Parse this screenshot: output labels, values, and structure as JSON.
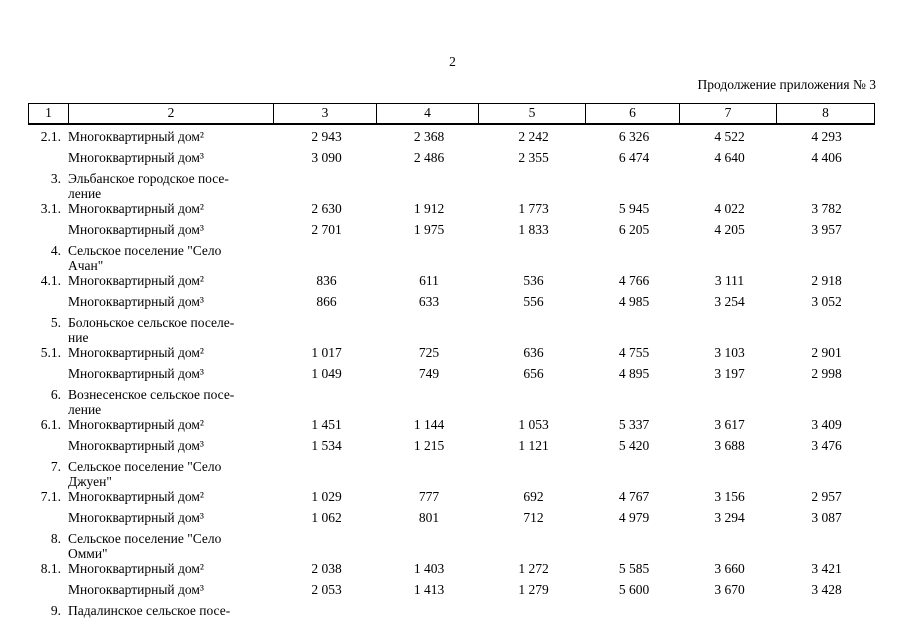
{
  "page": {
    "number": "2",
    "continuation_note": "Продолжение приложения № 3"
  },
  "table": {
    "columns": [
      "1",
      "2",
      "3",
      "4",
      "5",
      "6",
      "7",
      "8"
    ],
    "rows": [
      {
        "num": "2.1.",
        "label": "Многоквартирный дом²",
        "values": [
          "2 943",
          "2 368",
          "2 242",
          "6 326",
          "4 522",
          "4 293"
        ]
      },
      {
        "num": "",
        "label": "Многоквартирный дом³",
        "values": [
          "3 090",
          "2 486",
          "2 355",
          "6 474",
          "4 640",
          "4 406"
        ]
      },
      {
        "num": "3.",
        "label": "Эльбанское городское посе-\nление",
        "values": [
          "",
          "",
          "",
          "",
          "",
          ""
        ]
      },
      {
        "num": "3.1.",
        "label": "Многоквартирный дом²",
        "values": [
          "2 630",
          "1 912",
          "1 773",
          "5 945",
          "4 022",
          "3 782"
        ]
      },
      {
        "num": "",
        "label": "Многоквартирный дом³",
        "values": [
          "2 701",
          "1 975",
          "1 833",
          "6 205",
          "4 205",
          "3 957"
        ]
      },
      {
        "num": "4.",
        "label": "Сельское поселение \"Село\nАчан\"",
        "values": [
          "",
          "",
          "",
          "",
          "",
          ""
        ]
      },
      {
        "num": "4.1.",
        "label": "Многоквартирный дом²",
        "values": [
          "836",
          "611",
          "536",
          "4 766",
          "3 111",
          "2 918"
        ]
      },
      {
        "num": "",
        "label": "Многоквартирный дом³",
        "values": [
          "866",
          "633",
          "556",
          "4 985",
          "3 254",
          "3 052"
        ]
      },
      {
        "num": "5.",
        "label": "Болоньское сельское поселе-\nние",
        "values": [
          "",
          "",
          "",
          "",
          "",
          ""
        ]
      },
      {
        "num": "5.1.",
        "label": "Многоквартирный дом²",
        "values": [
          "1 017",
          "725",
          "636",
          "4 755",
          "3 103",
          "2 901"
        ]
      },
      {
        "num": "",
        "label": "Многоквартирный дом³",
        "values": [
          "1 049",
          "749",
          "656",
          "4 895",
          "3 197",
          "2 998"
        ]
      },
      {
        "num": "6.",
        "label": "Вознесенское сельское посе-\nление",
        "values": [
          "",
          "",
          "",
          "",
          "",
          ""
        ]
      },
      {
        "num": "6.1.",
        "label": "Многоквартирный дом²",
        "values": [
          "1 451",
          "1 144",
          "1 053",
          "5 337",
          "3 617",
          "3 409"
        ]
      },
      {
        "num": "",
        "label": "Многоквартирный дом³",
        "values": [
          "1 534",
          "1 215",
          "1 121",
          "5 420",
          "3 688",
          "3 476"
        ]
      },
      {
        "num": "7.",
        "label": "Сельское поселение \"Село\nДжуен\"",
        "values": [
          "",
          "",
          "",
          "",
          "",
          ""
        ]
      },
      {
        "num": "7.1.",
        "label": "Многоквартирный дом²",
        "values": [
          "1 029",
          "777",
          "692",
          "4 767",
          "3 156",
          "2 957"
        ]
      },
      {
        "num": "",
        "label": "Многоквартирный дом³",
        "values": [
          "1 062",
          "801",
          "712",
          "4 979",
          "3 294",
          "3 087"
        ]
      },
      {
        "num": "8.",
        "label": "Сельское поселение \"Село\nОмми\"",
        "values": [
          "",
          "",
          "",
          "",
          "",
          ""
        ]
      },
      {
        "num": "8.1.",
        "label": "Многоквартирный дом²",
        "values": [
          "2 038",
          "1 403",
          "1 272",
          "5 585",
          "3 660",
          "3 421"
        ]
      },
      {
        "num": "",
        "label": "Многоквартирный дом³",
        "values": [
          "2 053",
          "1 413",
          "1 279",
          "5 600",
          "3 670",
          "3 428"
        ]
      },
      {
        "num": "9.",
        "label": "Падалинское сельское посе-",
        "values": [
          "",
          "",
          "",
          "",
          "",
          ""
        ]
      }
    ]
  }
}
